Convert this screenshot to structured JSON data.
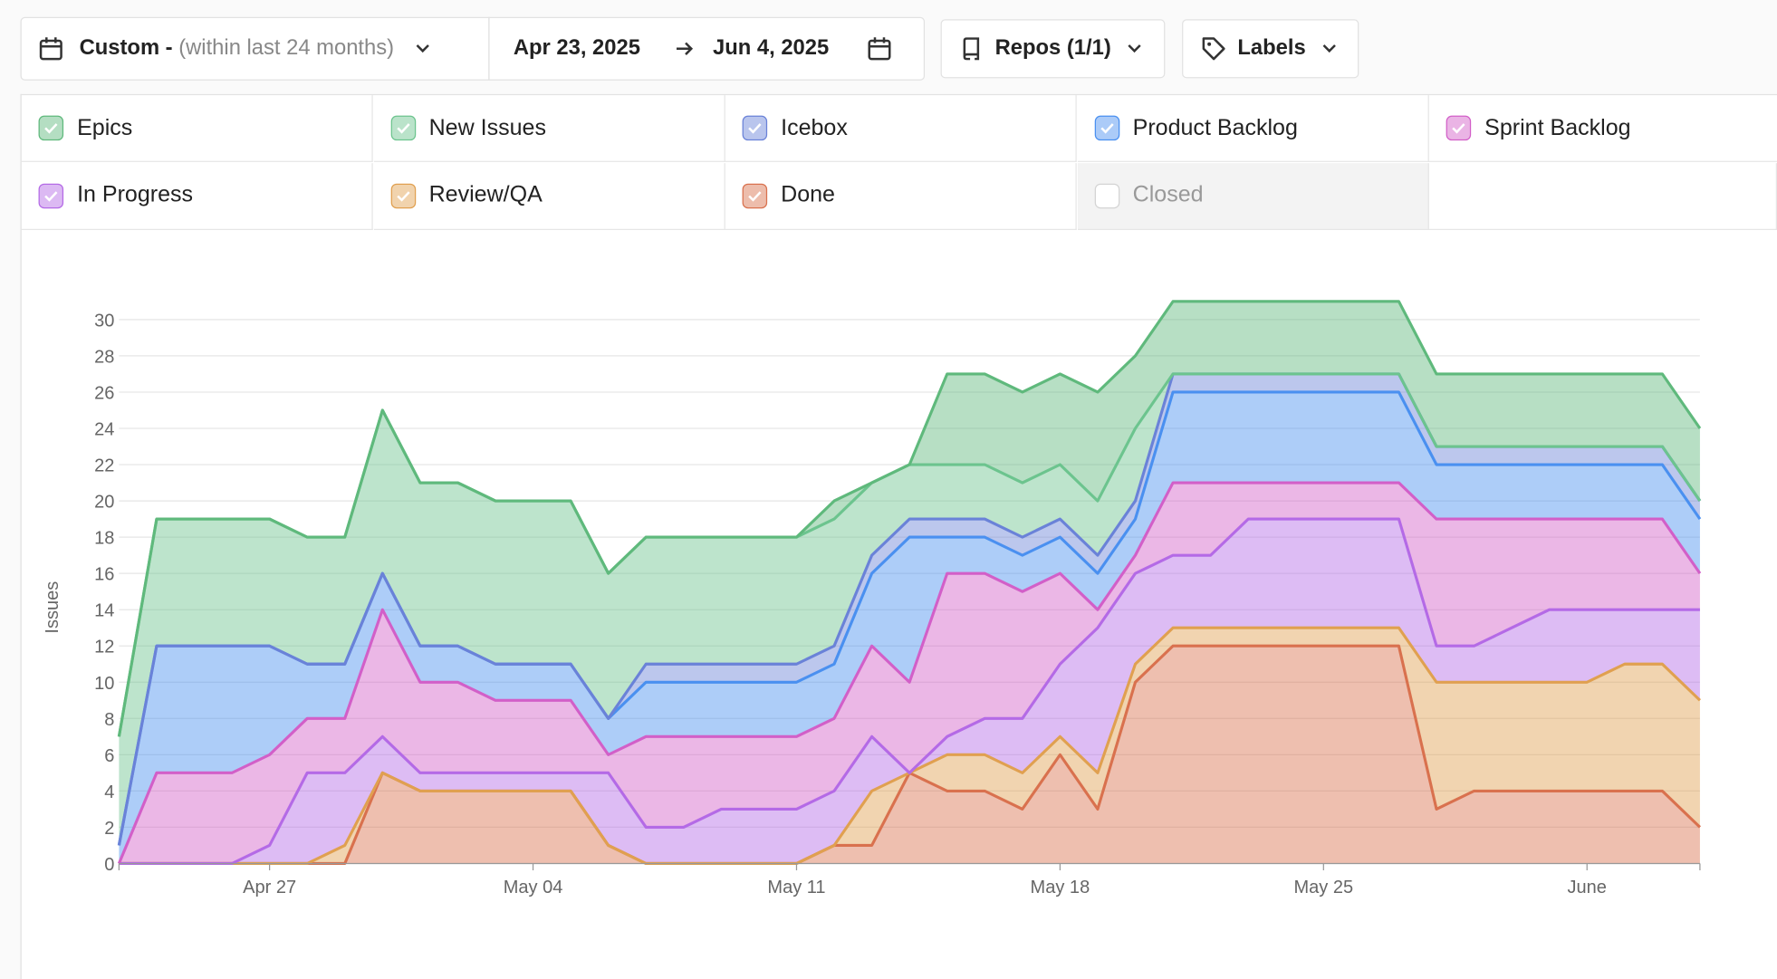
{
  "toolbar": {
    "range_label": "Custom -",
    "range_hint": "(within last 24 months)",
    "start_date": "Apr 23, 2025",
    "end_date": "Jun 4, 2025",
    "repos": "Repos (1/1)",
    "labels": "Labels"
  },
  "chart_data": {
    "type": "stacked-area",
    "y_label": "Issues",
    "x": [
      0,
      1,
      2,
      3,
      4,
      5,
      6,
      7,
      8,
      9,
      10,
      11,
      12,
      13,
      14,
      15,
      16,
      17,
      18,
      19,
      20,
      21,
      22,
      23,
      24,
      25,
      26,
      27,
      28,
      29,
      30,
      31,
      32,
      33,
      34,
      35,
      36,
      37,
      38,
      39,
      40,
      41,
      42
    ],
    "xlim": [
      0,
      42
    ],
    "xticks": [
      {
        "value": 4,
        "label": "Apr 27"
      },
      {
        "value": 11,
        "label": "May 04"
      },
      {
        "value": 18,
        "label": "May 11"
      },
      {
        "value": 25,
        "label": "May 18"
      },
      {
        "value": 32,
        "label": "May 25"
      },
      {
        "value": 39,
        "label": "June"
      }
    ],
    "ylim": [
      0,
      32
    ],
    "yticks": [
      0,
      2,
      4,
      6,
      8,
      10,
      12,
      14,
      16,
      18,
      20,
      22,
      24,
      26,
      28,
      30
    ],
    "grid": true,
    "series": [
      {
        "name": "Epics",
        "color": "#5fb97c",
        "checked": true,
        "values": [
          0,
          0,
          0,
          0,
          0,
          0,
          0,
          0,
          0,
          0,
          0,
          0,
          0,
          0,
          0,
          0,
          0,
          0,
          0,
          1,
          0,
          0,
          5,
          5,
          5,
          5,
          6,
          4,
          4,
          4,
          4,
          4,
          4,
          4,
          4,
          4,
          4,
          4,
          4,
          4,
          4,
          4,
          4
        ]
      },
      {
        "name": "New Issues",
        "color": "#6cc48e",
        "checked": true,
        "values": [
          6,
          7,
          7,
          7,
          7,
          7,
          7,
          9,
          9,
          9,
          9,
          9,
          9,
          8,
          7,
          7,
          7,
          7,
          7,
          7,
          4,
          3,
          3,
          3,
          3,
          3,
          3,
          4,
          0,
          0,
          0,
          0,
          0,
          0,
          0,
          0,
          0,
          0,
          0,
          0,
          0,
          0,
          0
        ]
      },
      {
        "name": "Icebox",
        "color": "#6a82d8",
        "checked": true,
        "values": [
          0,
          0,
          0,
          0,
          0,
          0,
          0,
          0,
          0,
          0,
          0,
          0,
          0,
          0,
          1,
          1,
          1,
          1,
          1,
          1,
          1,
          1,
          1,
          1,
          1,
          1,
          1,
          1,
          1,
          1,
          1,
          1,
          1,
          1,
          1,
          1,
          1,
          1,
          1,
          1,
          1,
          1,
          1
        ]
      },
      {
        "name": "Product Backlog",
        "color": "#4a90f0",
        "checked": true,
        "values": [
          1,
          7,
          7,
          7,
          6,
          3,
          3,
          2,
          2,
          2,
          2,
          2,
          2,
          2,
          3,
          3,
          3,
          3,
          3,
          3,
          4,
          8,
          2,
          2,
          2,
          2,
          2,
          2,
          5,
          5,
          5,
          5,
          5,
          5,
          5,
          3,
          3,
          3,
          3,
          3,
          3,
          3,
          3
        ]
      },
      {
        "name": "Sprint Backlog",
        "color": "#d25fc8",
        "checked": true,
        "values": [
          0,
          5,
          5,
          5,
          5,
          3,
          3,
          7,
          5,
          5,
          4,
          4,
          4,
          1,
          5,
          5,
          4,
          4,
          4,
          4,
          5,
          5,
          9,
          8,
          7,
          5,
          1,
          1,
          4,
          4,
          2,
          2,
          2,
          2,
          2,
          7,
          7,
          6,
          5,
          5,
          5,
          5,
          2
        ]
      },
      {
        "name": "In Progress",
        "color": "#b46ae6",
        "checked": true,
        "values": [
          0,
          0,
          0,
          0,
          1,
          5,
          4,
          2,
          1,
          1,
          1,
          1,
          1,
          4,
          2,
          2,
          3,
          3,
          3,
          3,
          3,
          0,
          1,
          2,
          3,
          4,
          8,
          5,
          4,
          4,
          6,
          6,
          6,
          6,
          6,
          2,
          2,
          3,
          4,
          4,
          3,
          3,
          5
        ]
      },
      {
        "name": "Review/QA",
        "color": "#e0a050",
        "checked": true,
        "values": [
          0,
          0,
          0,
          0,
          0,
          0,
          1,
          0,
          0,
          0,
          0,
          0,
          0,
          0,
          0,
          0,
          0,
          0,
          0,
          0,
          3,
          0,
          2,
          2,
          2,
          1,
          2,
          1,
          1,
          1,
          1,
          1,
          1,
          1,
          1,
          7,
          6,
          6,
          6,
          6,
          7,
          7,
          7
        ]
      },
      {
        "name": "Done",
        "color": "#d9714e",
        "checked": true,
        "values": [
          0,
          0,
          0,
          0,
          0,
          0,
          0,
          5,
          4,
          4,
          4,
          4,
          4,
          1,
          0,
          0,
          0,
          0,
          0,
          1,
          1,
          5,
          4,
          4,
          3,
          6,
          3,
          10,
          12,
          12,
          12,
          12,
          12,
          12,
          12,
          3,
          4,
          4,
          4,
          4,
          4,
          4,
          2
        ]
      },
      {
        "name": "Closed",
        "color": "#bbbbbb",
        "checked": false
      }
    ]
  }
}
